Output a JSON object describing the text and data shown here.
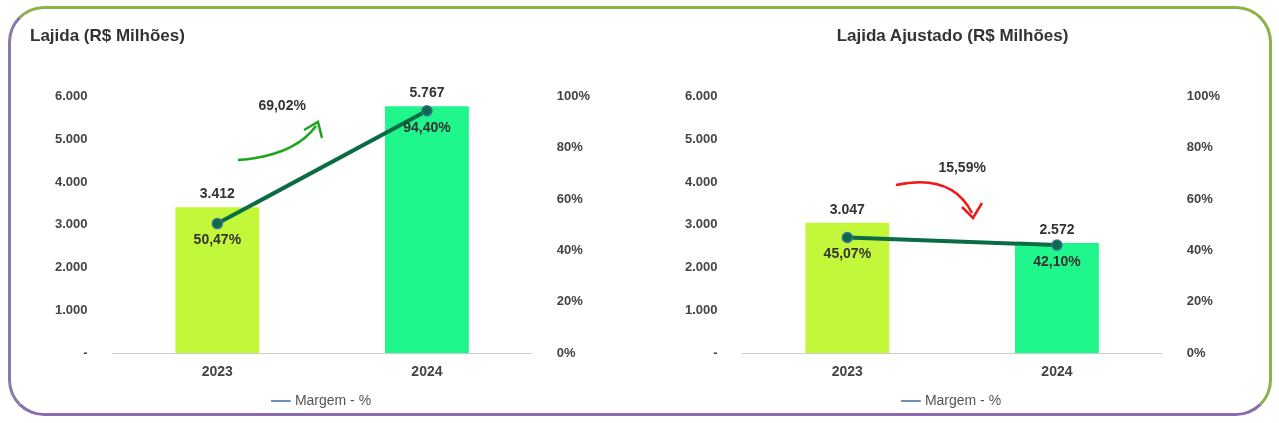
{
  "chart_data": [
    {
      "type": "bar",
      "title": "Lajida (R$ Milhões)",
      "categories": [
        "2023",
        "2024"
      ],
      "series": [
        {
          "colors": [
            "#c3f73a",
            "#1ff78c"
          ],
          "values": [
            3412,
            5767
          ],
          "value_labels": [
            "3.412",
            "5.767"
          ]
        },
        {
          "type": "line",
          "name": "Margem - %",
          "color": "#0b6b45",
          "axis": "y2",
          "values": [
            50.47,
            94.4
          ],
          "value_labels": [
            "50,47%",
            "94,40%"
          ]
        }
      ],
      "ylim": [
        0,
        6000
      ],
      "yticks": [
        {
          "value": 0,
          "label": "-"
        },
        {
          "value": 1000,
          "label": "1.000"
        },
        {
          "value": 2000,
          "label": "2.000"
        },
        {
          "value": 3000,
          "label": "3.000"
        },
        {
          "value": 4000,
          "label": "4.000"
        },
        {
          "value": 5000,
          "label": "5.000"
        },
        {
          "value": 6000,
          "label": "6.000"
        }
      ],
      "y2lim": [
        0,
        100
      ],
      "y2ticks": [
        {
          "value": 0,
          "label": "0%"
        },
        {
          "value": 20,
          "label": "20%"
        },
        {
          "value": 40,
          "label": "40%"
        },
        {
          "value": 60,
          "label": "60%"
        },
        {
          "value": 80,
          "label": "80%"
        },
        {
          "value": 100,
          "label": "100%"
        }
      ],
      "annotations": [
        "69,02%"
      ],
      "legend": "bottom",
      "marker": "circle",
      "grid": false
    },
    {
      "type": "bar",
      "title": "Lajida Ajustado (R$ Milhões)",
      "categories": [
        "2023",
        "2024"
      ],
      "series": [
        {
          "colors": [
            "#c3f73a",
            "#1ff78c"
          ],
          "values": [
            3047,
            2572
          ],
          "value_labels": [
            "3.047",
            "2.572"
          ]
        },
        {
          "type": "line",
          "name": "Margem - %",
          "color": "#0b6b45",
          "axis": "y2",
          "values": [
            45.07,
            42.1
          ],
          "value_labels": [
            "45,07%",
            "42,10%"
          ]
        }
      ],
      "ylim": [
        0,
        6000
      ],
      "yticks": [
        {
          "value": 0,
          "label": "-"
        },
        {
          "value": 1000,
          "label": "1.000"
        },
        {
          "value": 2000,
          "label": "2.000"
        },
        {
          "value": 3000,
          "label": "3.000"
        },
        {
          "value": 4000,
          "label": "4.000"
        },
        {
          "value": 5000,
          "label": "5.000"
        },
        {
          "value": 6000,
          "label": "6.000"
        }
      ],
      "y2lim": [
        0,
        100
      ],
      "y2ticks": [
        {
          "value": 0,
          "label": "0%"
        },
        {
          "value": 20,
          "label": "20%"
        },
        {
          "value": 40,
          "label": "40%"
        },
        {
          "value": 60,
          "label": "60%"
        },
        {
          "value": 80,
          "label": "80%"
        },
        {
          "value": 100,
          "label": "100%"
        }
      ],
      "annotations": [
        "15,59%"
      ],
      "legend": "bottom",
      "marker": "circle",
      "grid": false
    }
  ]
}
